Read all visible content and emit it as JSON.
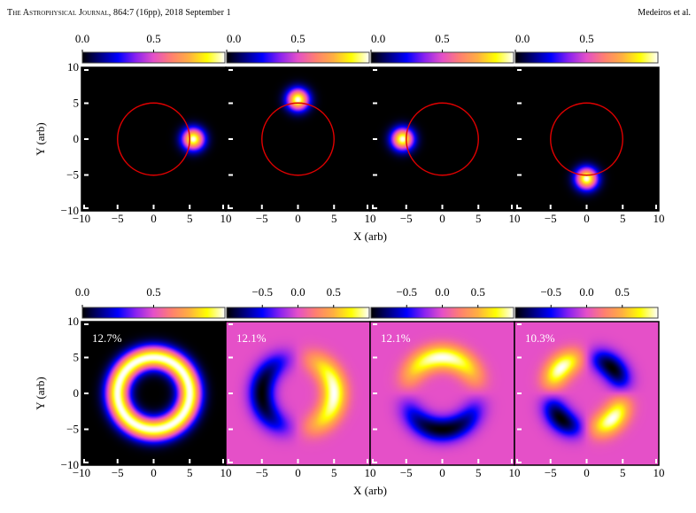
{
  "header": {
    "journal": "The Astrophysical Journal",
    "citation": ", 864:7 (16pp), 2018 September 1",
    "authors": "Medeiros et al."
  },
  "colormap": {
    "name": "gnuplot2-like",
    "stops": [
      "#000000",
      "#00007f",
      "#0000ff",
      "#8a22f0",
      "#e550c8",
      "#ff7f70",
      "#ffb040",
      "#ffff00",
      "#ffffff"
    ],
    "ring_color": "#e00000",
    "mid_background": "#c428d0"
  },
  "chart_data": [
    {
      "type": "heatmap",
      "row": "top",
      "description": "Gaussian blob orbiting outside a circle of radius 5",
      "xlabel": "X (arb)",
      "ylabel": "Y (arb)",
      "xlim": [
        -10,
        10
      ],
      "ylim": [
        -10,
        10
      ],
      "xticks": [
        "−10",
        "−5",
        "0",
        "5",
        "10"
      ],
      "yticks": [
        "10",
        "5",
        "0",
        "−5",
        "−10"
      ],
      "circle_radius": 5,
      "panels": [
        {
          "colorbar_ticks": [
            "0.0",
            "0.5"
          ],
          "colorbar_range": [
            0,
            1
          ],
          "blob": {
            "x": 5.5,
            "y": 0,
            "sigma": 1.0
          }
        },
        {
          "colorbar_ticks": [
            "0.0",
            "0.5"
          ],
          "colorbar_range": [
            0,
            1
          ],
          "blob": {
            "x": 0,
            "y": 5.5,
            "sigma": 1.0
          }
        },
        {
          "colorbar_ticks": [
            "0.0",
            "0.5"
          ],
          "colorbar_range": [
            0,
            1
          ],
          "blob": {
            "x": -5.5,
            "y": 0,
            "sigma": 1.0
          }
        },
        {
          "colorbar_ticks": [
            "0.0",
            "0.5"
          ],
          "colorbar_range": [
            0,
            1
          ],
          "blob": {
            "x": 0,
            "y": -5.5,
            "sigma": 1.0
          }
        }
      ]
    },
    {
      "type": "heatmap",
      "row": "bottom",
      "description": "Principal components of ring image",
      "xlabel": "X (arb)",
      "ylabel": "Y (arb)",
      "xlim": [
        -10,
        10
      ],
      "ylim": [
        -10,
        10
      ],
      "xticks": [
        "−10",
        "−5",
        "0",
        "5",
        "10"
      ],
      "yticks": [
        "10",
        "5",
        "0",
        "−5",
        "−10"
      ],
      "panels": [
        {
          "label": "12.7%",
          "mode": "ring",
          "colorbar_ticks": [
            "0.0",
            "0.5"
          ],
          "colorbar_tick_values": [
            0,
            0.5
          ],
          "colorbar_range": [
            0,
            1
          ]
        },
        {
          "label": "12.1%",
          "mode": "dipole-x",
          "colorbar_ticks": [
            "−0.5",
            "0.0",
            "0.5"
          ],
          "colorbar_tick_values": [
            -0.5,
            0,
            0.5
          ],
          "colorbar_range": [
            -1,
            1
          ]
        },
        {
          "label": "12.1%",
          "mode": "dipole-y",
          "colorbar_ticks": [
            "−0.5",
            "0.0",
            "0.5"
          ],
          "colorbar_tick_values": [
            -0.5,
            0,
            0.5
          ],
          "colorbar_range": [
            -1,
            1
          ]
        },
        {
          "label": "10.3%",
          "mode": "quadrupole",
          "colorbar_ticks": [
            "−0.5",
            "0.0",
            "0.5"
          ],
          "colorbar_tick_values": [
            -0.5,
            0,
            0.5
          ],
          "colorbar_range": [
            -1,
            1
          ]
        }
      ]
    }
  ]
}
